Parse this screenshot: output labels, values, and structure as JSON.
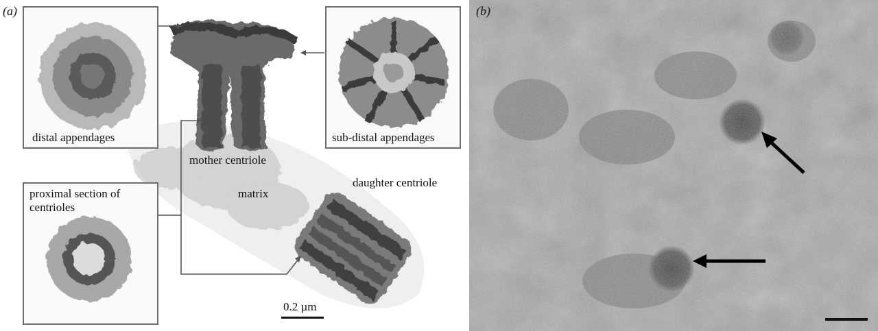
{
  "figure": {
    "panel_a": {
      "label": "(a)",
      "insets": {
        "distal": "distal appendages",
        "subdistal": "sub-distal appendages",
        "proximal": "proximal section of centrioles"
      },
      "labels": {
        "mother": "mother centriole",
        "matrix": "matrix",
        "daughter": "daughter centriole"
      },
      "scale_bar": "0.2 µm"
    },
    "panel_b": {
      "label": "(b)"
    }
  }
}
